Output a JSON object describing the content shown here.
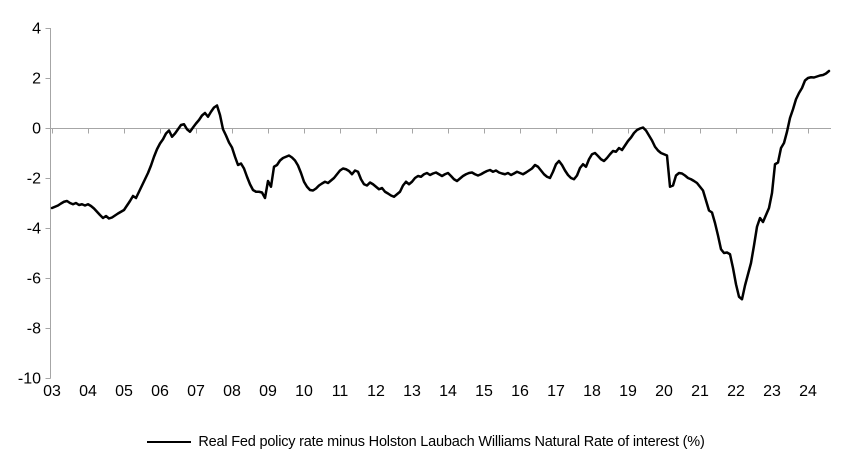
{
  "chart_data": {
    "type": "line",
    "title": "",
    "legend_label": "Real Fed policy rate minus Holston Laubach Williams Natural Rate of interest (%)",
    "legend_position": "bottom",
    "grid": "zero-line-only",
    "line_color": "#000000",
    "axis_color": "#a6a6a6",
    "ylim": [
      -10,
      4
    ],
    "y_ticks": [
      4,
      2,
      0,
      -2,
      -4,
      -6,
      -8,
      -10
    ],
    "x_tick_labels": [
      "03",
      "04",
      "05",
      "06",
      "07",
      "08",
      "09",
      "10",
      "11",
      "12",
      "13",
      "14",
      "15",
      "16",
      "17",
      "18",
      "19",
      "20",
      "21",
      "22",
      "23",
      "24"
    ],
    "x_start_year": 2003,
    "x_frequency": "monthly",
    "series": [
      {
        "name": "Real Fed policy rate minus Holston Laubach Williams Natural Rate of interest (%)",
        "values_monthly_from_2003_01": [
          -3.2,
          -3.15,
          -3.1,
          -3.02,
          -2.95,
          -2.92,
          -3.0,
          -3.05,
          -3.0,
          -3.08,
          -3.05,
          -3.1,
          -3.05,
          -3.12,
          -3.22,
          -3.35,
          -3.48,
          -3.6,
          -3.52,
          -3.62,
          -3.58,
          -3.5,
          -3.42,
          -3.35,
          -3.28,
          -3.1,
          -2.92,
          -2.72,
          -2.8,
          -2.55,
          -2.3,
          -2.05,
          -1.8,
          -1.5,
          -1.15,
          -0.85,
          -0.62,
          -0.45,
          -0.22,
          -0.1,
          -0.35,
          -0.22,
          -0.05,
          0.12,
          0.15,
          -0.05,
          -0.15,
          0.02,
          0.18,
          0.32,
          0.5,
          0.6,
          0.45,
          0.65,
          0.82,
          0.9,
          0.52,
          -0.05,
          -0.3,
          -0.58,
          -0.78,
          -1.15,
          -1.48,
          -1.42,
          -1.62,
          -1.95,
          -2.25,
          -2.48,
          -2.55,
          -2.55,
          -2.58,
          -2.8,
          -2.12,
          -2.35,
          -1.55,
          -1.48,
          -1.3,
          -1.2,
          -1.15,
          -1.1,
          -1.18,
          -1.3,
          -1.5,
          -1.8,
          -2.15,
          -2.35,
          -2.48,
          -2.5,
          -2.42,
          -2.3,
          -2.22,
          -2.15,
          -2.2,
          -2.1,
          -2.0,
          -1.85,
          -1.7,
          -1.62,
          -1.65,
          -1.72,
          -1.85,
          -1.7,
          -1.75,
          -2.05,
          -2.25,
          -2.3,
          -2.18,
          -2.25,
          -2.35,
          -2.45,
          -2.4,
          -2.55,
          -2.62,
          -2.7,
          -2.75,
          -2.65,
          -2.55,
          -2.3,
          -2.15,
          -2.25,
          -2.15,
          -2.0,
          -1.92,
          -1.95,
          -1.85,
          -1.8,
          -1.88,
          -1.82,
          -1.78,
          -1.85,
          -1.92,
          -1.85,
          -1.8,
          -1.92,
          -2.05,
          -2.12,
          -2.02,
          -1.92,
          -1.85,
          -1.8,
          -1.78,
          -1.85,
          -1.9,
          -1.85,
          -1.78,
          -1.72,
          -1.68,
          -1.75,
          -1.7,
          -1.78,
          -1.82,
          -1.85,
          -1.8,
          -1.88,
          -1.82,
          -1.75,
          -1.8,
          -1.85,
          -1.78,
          -1.7,
          -1.62,
          -1.48,
          -1.55,
          -1.7,
          -1.85,
          -1.95,
          -2.0,
          -1.75,
          -1.45,
          -1.32,
          -1.48,
          -1.7,
          -1.88,
          -2.0,
          -2.05,
          -1.9,
          -1.6,
          -1.45,
          -1.55,
          -1.25,
          -1.05,
          -1.0,
          -1.12,
          -1.25,
          -1.32,
          -1.2,
          -1.05,
          -0.92,
          -0.95,
          -0.8,
          -0.88,
          -0.7,
          -0.52,
          -0.38,
          -0.2,
          -0.08,
          -0.02,
          0.02,
          -0.1,
          -0.3,
          -0.5,
          -0.75,
          -0.9,
          -1.0,
          -1.05,
          -1.1,
          -2.35,
          -2.3,
          -1.9,
          -1.8,
          -1.82,
          -1.9,
          -2.0,
          -2.05,
          -2.12,
          -2.2,
          -2.35,
          -2.5,
          -2.9,
          -3.3,
          -3.38,
          -3.8,
          -4.3,
          -4.85,
          -5.0,
          -4.98,
          -5.05,
          -5.6,
          -6.25,
          -6.75,
          -6.85,
          -6.3,
          -5.85,
          -5.4,
          -4.7,
          -3.95,
          -3.6,
          -3.76,
          -3.48,
          -3.2,
          -2.6,
          -1.45,
          -1.38,
          -0.8,
          -0.6,
          -0.15,
          0.4,
          0.75,
          1.15,
          1.4,
          1.6,
          1.9,
          2.0,
          2.03,
          2.02,
          2.06,
          2.1,
          2.12,
          2.18,
          2.28
        ]
      }
    ]
  }
}
